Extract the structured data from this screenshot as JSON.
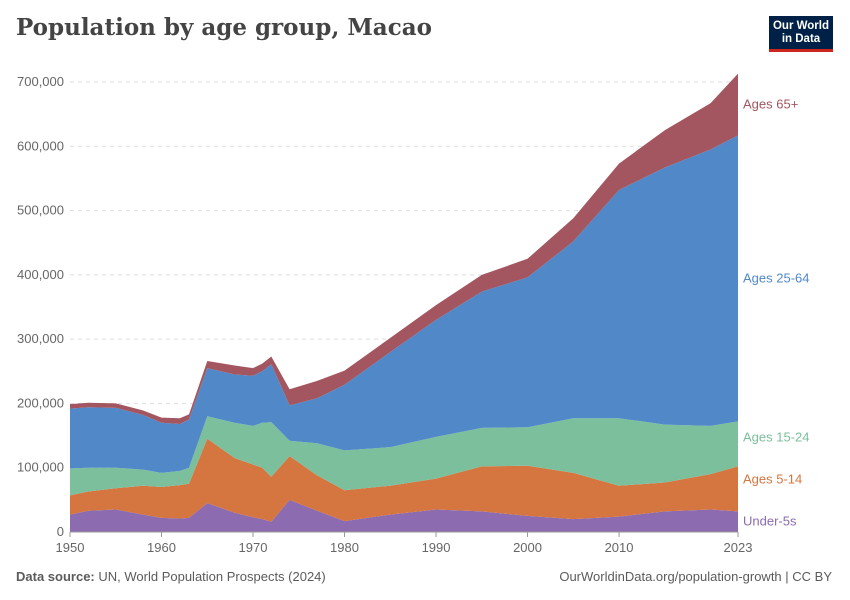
{
  "title": "Population by age group, Macao",
  "logo": {
    "line1": "Our World",
    "line2": "in Data"
  },
  "footer": {
    "source_label": "Data source:",
    "source_text": "UN, World Population Prospects (2024)",
    "url_text": "OurWorldinData.org/population-growth | CC BY"
  },
  "chart_data": {
    "type": "area",
    "stacked": true,
    "title": "Population by age group, Macao",
    "xlabel": "",
    "ylabel": "",
    "xlim": [
      1950,
      2023
    ],
    "ylim": [
      0,
      700000
    ],
    "x_ticks": [
      1950,
      1960,
      1970,
      1980,
      1990,
      2000,
      2010,
      2023
    ],
    "x_tick_labels": [
      "1950",
      "1960",
      "1970",
      "1980",
      "1990",
      "2000",
      "2010",
      "2023"
    ],
    "y_ticks": [
      0,
      100000,
      200000,
      300000,
      400000,
      500000,
      600000,
      700000
    ],
    "y_tick_labels": [
      "0",
      "100,000",
      "200,000",
      "300,000",
      "400,000",
      "500,000",
      "600,000",
      "700,000"
    ],
    "grid": "horizontal dashed",
    "legend": "right (labels at line ends)",
    "x": [
      1950,
      1952,
      1955,
      1958,
      1960,
      1962,
      1963,
      1965,
      1968,
      1970,
      1971,
      1972,
      1974,
      1977,
      1980,
      1985,
      1990,
      1995,
      2000,
      2005,
      2010,
      2015,
      2020,
      2023
    ],
    "series": [
      {
        "name": "Under-5s",
        "color": "#8c6bb0",
        "values": [
          27000,
          33000,
          35000,
          27000,
          22000,
          21000,
          22000,
          45000,
          30000,
          23000,
          20000,
          16000,
          50000,
          33000,
          17000,
          27000,
          35000,
          32000,
          25000,
          20000,
          24000,
          32000,
          35000,
          32000
        ]
      },
      {
        "name": "Ages 5-14",
        "color": "#d5753f",
        "values": [
          30000,
          30000,
          33000,
          45000,
          48000,
          52000,
          53000,
          100000,
          85000,
          82000,
          80000,
          70000,
          68000,
          55000,
          48000,
          45000,
          48000,
          70000,
          78000,
          72000,
          48000,
          45000,
          55000,
          70000
        ]
      },
      {
        "name": "Ages 15-24",
        "color": "#7cbf9c",
        "values": [
          42000,
          37000,
          32000,
          25000,
          22000,
          22000,
          25000,
          35000,
          55000,
          60000,
          70000,
          85000,
          24000,
          50000,
          62000,
          60000,
          65000,
          60000,
          60000,
          85000,
          105000,
          90000,
          75000,
          70000
        ]
      },
      {
        "name": "Ages 25-64",
        "color": "#5088c8",
        "values": [
          93000,
          94000,
          93000,
          85000,
          78000,
          73000,
          75000,
          75000,
          75000,
          78000,
          80000,
          90000,
          55000,
          70000,
          102000,
          148000,
          182000,
          212000,
          233000,
          275000,
          355000,
          400000,
          430000,
          445000
        ]
      },
      {
        "name": "Ages 65+",
        "color": "#a3565f",
        "values": [
          7000,
          7000,
          7000,
          7000,
          8000,
          9000,
          8000,
          11000,
          14000,
          12000,
          12000,
          12000,
          25000,
          27000,
          22000,
          22000,
          23000,
          26000,
          29000,
          36000,
          41000,
          58000,
          72000,
          96000
        ]
      }
    ]
  }
}
